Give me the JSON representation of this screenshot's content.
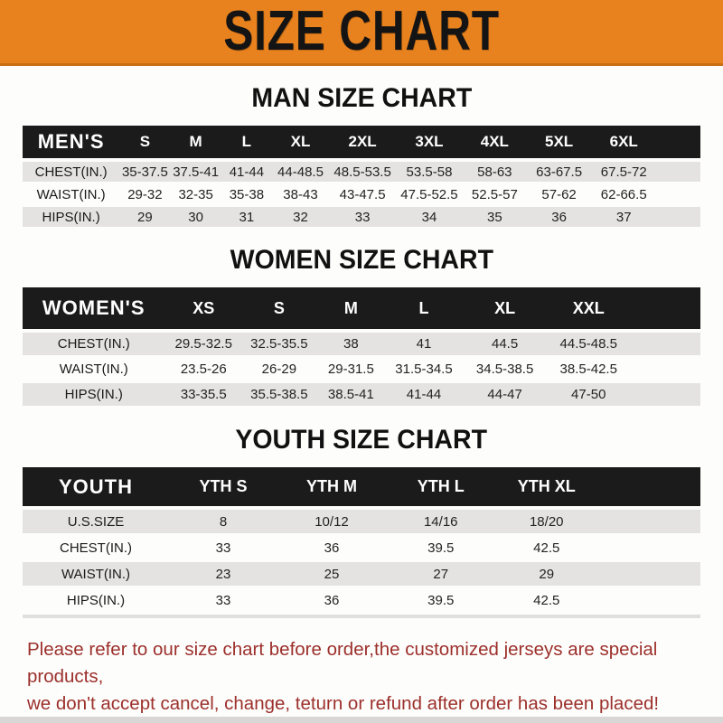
{
  "banner": {
    "title": "SIZE CHART"
  },
  "sections": [
    {
      "heading": "MAN SIZE CHART",
      "table": {
        "label": "MEN'S",
        "columns": [
          "S",
          "M",
          "L",
          "XL",
          "2XL",
          "3XL",
          "4XL",
          "5XL",
          "6XL"
        ],
        "rows": [
          {
            "label": "CHEST(IN.)",
            "values": [
              "35-37.5",
              "37.5-41",
              "41-44",
              "44-48.5",
              "48.5-53.5",
              "53.5-58",
              "58-63",
              "63-67.5",
              "67.5-72"
            ]
          },
          {
            "label": "WAIST(IN.)",
            "values": [
              "29-32",
              "32-35",
              "35-38",
              "38-43",
              "43-47.5",
              "47.5-52.5",
              "52.5-57",
              "57-62",
              "62-66.5"
            ]
          },
          {
            "label": "HIPS(IN.)",
            "values": [
              "29",
              "30",
              "31",
              "32",
              "33",
              "34",
              "35",
              "36",
              "37"
            ]
          }
        ]
      }
    },
    {
      "heading": "WOMEN SIZE CHART",
      "table": {
        "label": "WOMEN'S",
        "columns": [
          "XS",
          "S",
          "M",
          "L",
          "XL",
          "XXL"
        ],
        "rows": [
          {
            "label": "CHEST(IN.)",
            "values": [
              "29.5-32.5",
              "32.5-35.5",
              "38",
              "41",
              "44.5",
              "44.5-48.5"
            ]
          },
          {
            "label": "WAIST(IN.)",
            "values": [
              "23.5-26",
              "26-29",
              "29-31.5",
              "31.5-34.5",
              "34.5-38.5",
              "38.5-42.5"
            ]
          },
          {
            "label": "HIPS(IN.)",
            "values": [
              "33-35.5",
              "35.5-38.5",
              "38.5-41",
              "41-44",
              "44-47",
              "47-50"
            ]
          }
        ]
      }
    },
    {
      "heading": "YOUTH SIZE CHART",
      "table": {
        "label": "YOUTH",
        "columns": [
          "YTH S",
          "YTH M",
          "YTH L",
          "YTH XL"
        ],
        "rows": [
          {
            "label": "U.S.SIZE",
            "values": [
              "8",
              "10/12",
              "14/16",
              "18/20"
            ]
          },
          {
            "label": "CHEST(IN.)",
            "values": [
              "33",
              "36",
              "39.5",
              "42.5"
            ]
          },
          {
            "label": "WAIST(IN.)",
            "values": [
              "23",
              "25",
              "27",
              "29"
            ]
          },
          {
            "label": "HIPS(IN.)",
            "values": [
              "33",
              "36",
              "39.5",
              "42.5"
            ]
          }
        ]
      }
    }
  ],
  "footer": {
    "line1": "Please refer to our size chart before order,the customized jerseys are special products,",
    "line2": "we don't accept cancel, change, teturn or refund after order has been placed!"
  },
  "colors": {
    "banner_bg": "#E8821E",
    "header_bar_bg": "#1B1B1B",
    "row_stripe": "#E4E3E1",
    "note_text": "#9C302B"
  }
}
